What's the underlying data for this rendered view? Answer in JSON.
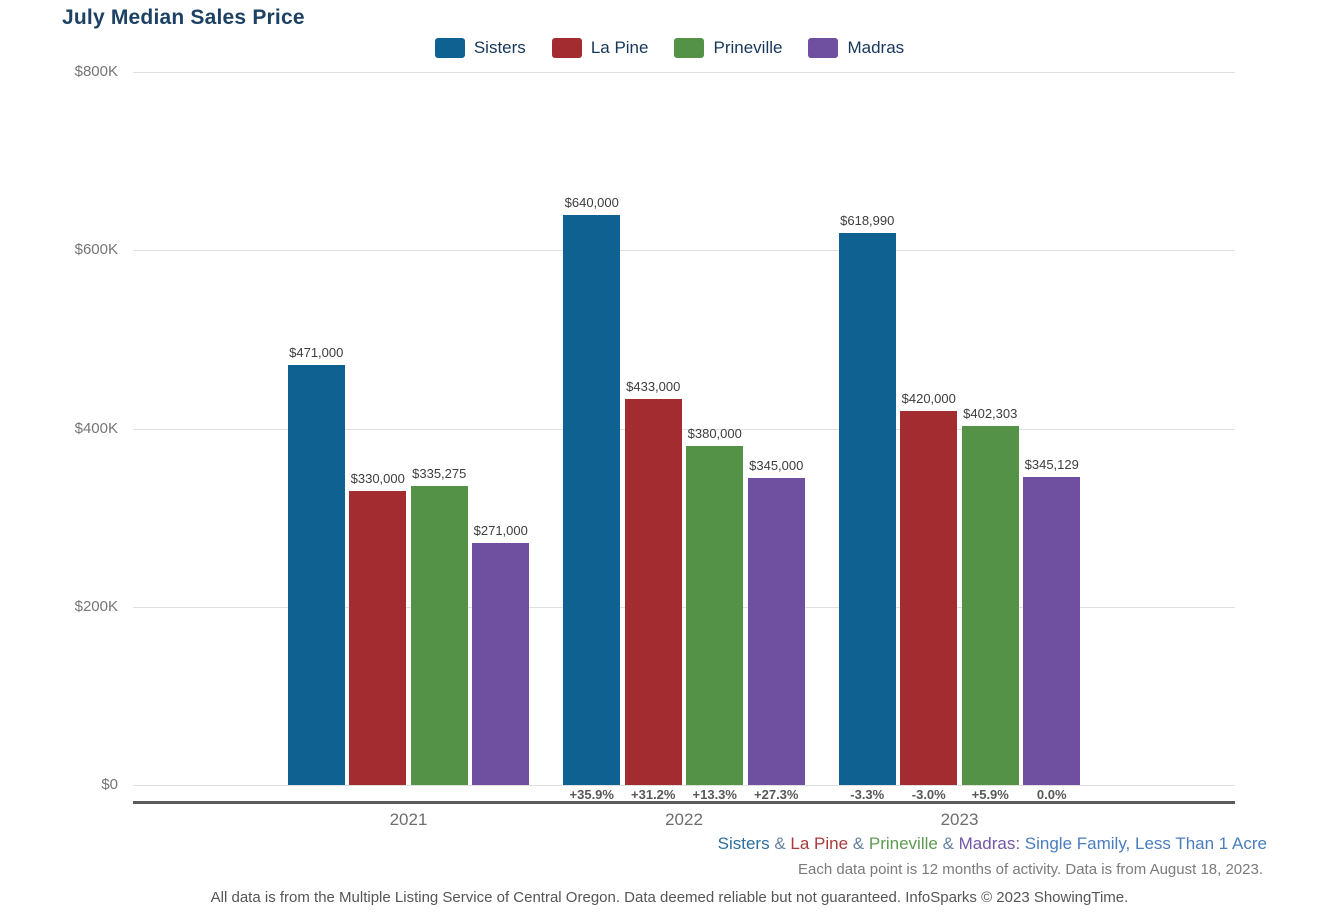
{
  "title": "July Median Sales Price",
  "colors": {
    "sisters": "#0e6191",
    "la_pine": "#a32c30",
    "prineville": "#549247",
    "madras": "#6f4f9f",
    "title_text": "#1c4163",
    "legend_text": "#16365a",
    "grid": "#e0e0e0",
    "axis": "#5c5c5c"
  },
  "legend": {
    "items": [
      {
        "label": "Sisters",
        "color": "#0e6191"
      },
      {
        "label": "La Pine",
        "color": "#a32c30"
      },
      {
        "label": "Prineville",
        "color": "#549247"
      },
      {
        "label": "Madras",
        "color": "#6f4f9f"
      }
    ]
  },
  "chart_data": {
    "type": "bar",
    "title": "July Median Sales Price",
    "categories": [
      "2021",
      "2022",
      "2023"
    ],
    "series": [
      {
        "name": "Sisters",
        "color": "#0e6191",
        "values": [
          471000,
          640000,
          618990
        ],
        "labels": [
          "$471,000",
          "$640,000",
          "$618,990"
        ],
        "pct_change": [
          null,
          "+35.9%",
          "-3.3%"
        ]
      },
      {
        "name": "La Pine",
        "color": "#a32c30",
        "values": [
          330000,
          433000,
          420000
        ],
        "labels": [
          "$330,000",
          "$433,000",
          "$420,000"
        ],
        "pct_change": [
          null,
          "+31.2%",
          "-3.0%"
        ]
      },
      {
        "name": "Prineville",
        "color": "#549247",
        "values": [
          335275,
          380000,
          402303
        ],
        "labels": [
          "$335,275",
          "$380,000",
          "$402,303"
        ],
        "pct_change": [
          null,
          "+13.3%",
          "+5.9%"
        ]
      },
      {
        "name": "Madras",
        "color": "#6f4f9f",
        "values": [
          271000,
          345000,
          345129
        ],
        "labels": [
          "$271,000",
          "$345,000",
          "$345,129"
        ],
        "pct_change": [
          null,
          "+27.3%",
          "0.0%"
        ]
      }
    ],
    "y_ticks": [
      "$800K",
      "$600K",
      "$400K",
      "$200K",
      "$0"
    ],
    "ylim": [
      0,
      800000
    ],
    "grid": true,
    "legend_position": "top"
  },
  "footer": {
    "line1_segments": [
      {
        "text": "Sisters",
        "color": "#2d6e9e"
      },
      {
        "text": " & ",
        "color": "#64819c"
      },
      {
        "text": "La Pine",
        "color": "#a8393c"
      },
      {
        "text": " & ",
        "color": "#64819c"
      },
      {
        "text": "Prineville",
        "color": "#5c9b50"
      },
      {
        "text": " & ",
        "color": "#64819c"
      },
      {
        "text": "Madras:",
        "color": "#7456a4"
      },
      {
        "text": " Single Family, Less Than 1 Acre",
        "color": "#4a7dbd"
      }
    ],
    "line2": "Each data point is 12 months of activity. Data is from August 18, 2023.",
    "line3": "All data is from the Multiple Listing Service of Central Oregon. Data deemed reliable but not guaranteed. InfoSparks © 2023 ShowingTime."
  }
}
